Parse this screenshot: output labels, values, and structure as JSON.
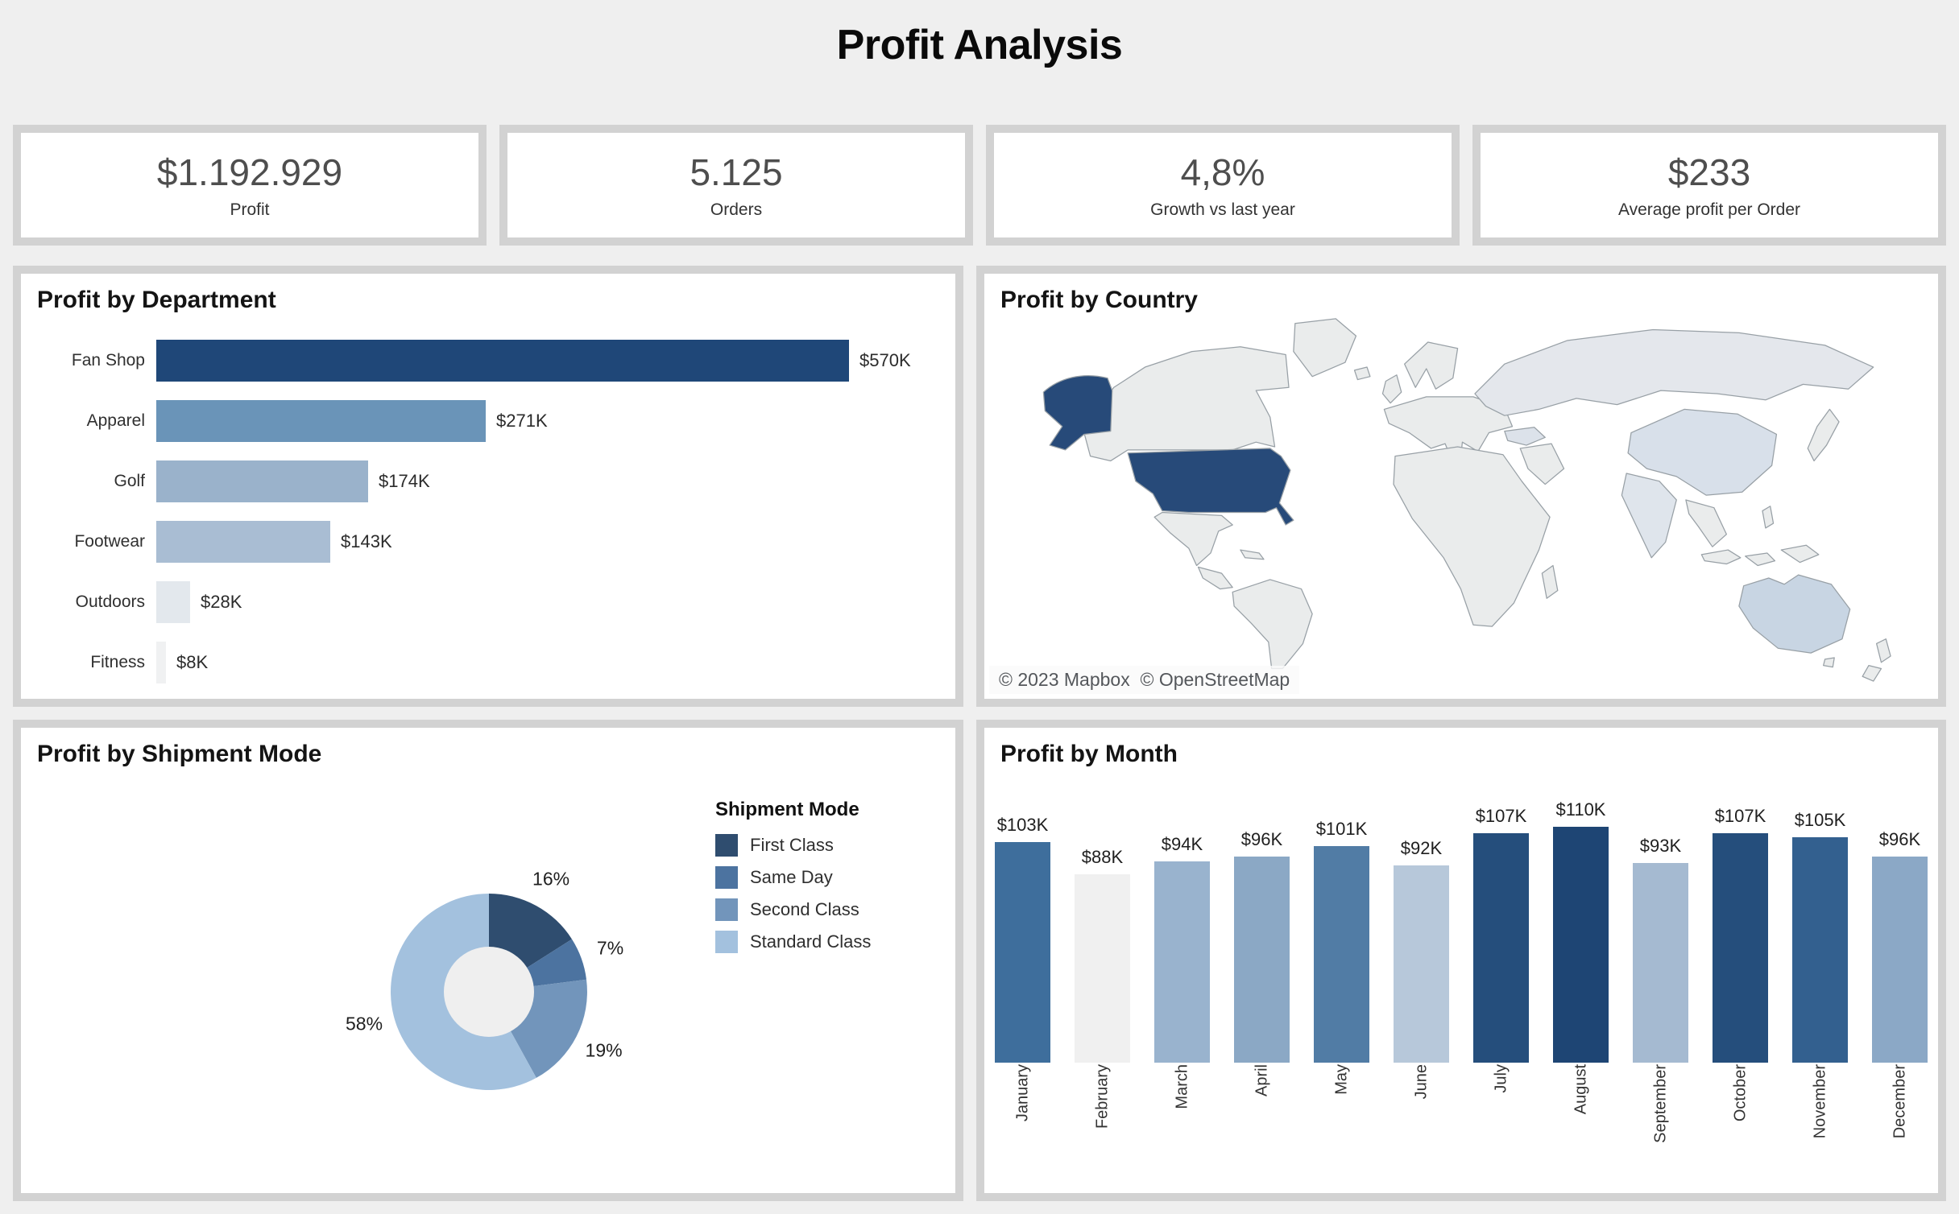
{
  "page": {
    "title": "Profit Analysis",
    "background": "#efefef",
    "frame_color": "#d2d2d2"
  },
  "kpis": [
    {
      "value": "$1.192.929",
      "label": "Profit"
    },
    {
      "value": "5.125",
      "label": "Orders"
    },
    {
      "value": "4,8%",
      "label": "Growth vs last year"
    },
    {
      "value": "$233",
      "label": "Average profit per Order"
    }
  ],
  "chart_data": [
    {
      "id": "department",
      "type": "bar",
      "orientation": "horizontal",
      "title": "Profit by Department",
      "categories": [
        "Fan Shop",
        "Apparel",
        "Golf",
        "Footwear",
        "Outdoors",
        "Fitness"
      ],
      "values": [
        570,
        271,
        174,
        143,
        28,
        8
      ],
      "value_labels": [
        "$570K",
        "$271K",
        "$174K",
        "$143K",
        "$28K",
        "$8K"
      ],
      "unit": "USD thousands",
      "xlim": [
        0,
        570
      ],
      "grid": false,
      "colors": [
        "#1f4778",
        "#6a94b8",
        "#9ab2cb",
        "#a9bdd3",
        "#e3e8ed",
        "#f0f1f2"
      ]
    },
    {
      "id": "country",
      "type": "choropleth",
      "title": "Profit by Country",
      "attribution": "© 2023 Mapbox  © OpenStreetMap",
      "note": "United States (incl. Alaska) shaded darkest = highest profit; Australia, China, India, Turkey lightly shaded",
      "stroke": "#98a0a6",
      "ocean": "#ffffff",
      "regions": {
        "usa": "#274a79",
        "alaska": "#274a79",
        "china": "#d8e0ea",
        "australia": "#c8d5e3",
        "india": "#dfe5ec",
        "turkey": "#dce2ea",
        "russia": "#e4e7ec",
        "default": "#eaecec"
      }
    },
    {
      "id": "shipment",
      "type": "pie",
      "title": "Profit by Shipment Mode",
      "legend_title": "Shipment Mode",
      "legend_position": "right",
      "start_angle_deg": 0,
      "direction": "clockwise",
      "hole_color": "#efefef",
      "slices": [
        {
          "name": "First Class",
          "pct": 16,
          "label": "16%",
          "color": "#2f4d6f"
        },
        {
          "name": "Same Day",
          "pct": 7,
          "label": "7%",
          "color": "#4c73a0"
        },
        {
          "name": "Second Class",
          "pct": 19,
          "label": "19%",
          "color": "#7295bb"
        },
        {
          "name": "Standard Class",
          "pct": 58,
          "label": "58%",
          "color": "#a3c1de"
        }
      ]
    },
    {
      "id": "month",
      "type": "bar",
      "orientation": "vertical",
      "title": "Profit by Month",
      "categories": [
        "January",
        "February",
        "March",
        "April",
        "May",
        "June",
        "July",
        "August",
        "September",
        "October",
        "November",
        "December"
      ],
      "values": [
        103,
        88,
        94,
        96,
        101,
        92,
        107,
        110,
        93,
        107,
        105,
        96
      ],
      "value_labels": [
        "$103K",
        "$88K",
        "$94K",
        "$96K",
        "$101K",
        "$92K",
        "$107K",
        "$110K",
        "$93K",
        "$107K",
        "$105K",
        "$96K"
      ],
      "unit": "USD thousands",
      "ylim": [
        0,
        110
      ],
      "grid": false,
      "colors": [
        "#3e6e9c",
        "#f0f0f0",
        "#99b3ce",
        "#8ba8c5",
        "#517ca5",
        "#b7c8da",
        "#254e7c",
        "#1e4574",
        "#a5bad1",
        "#254e7c",
        "#33608f",
        "#8ba8c6"
      ]
    }
  ]
}
